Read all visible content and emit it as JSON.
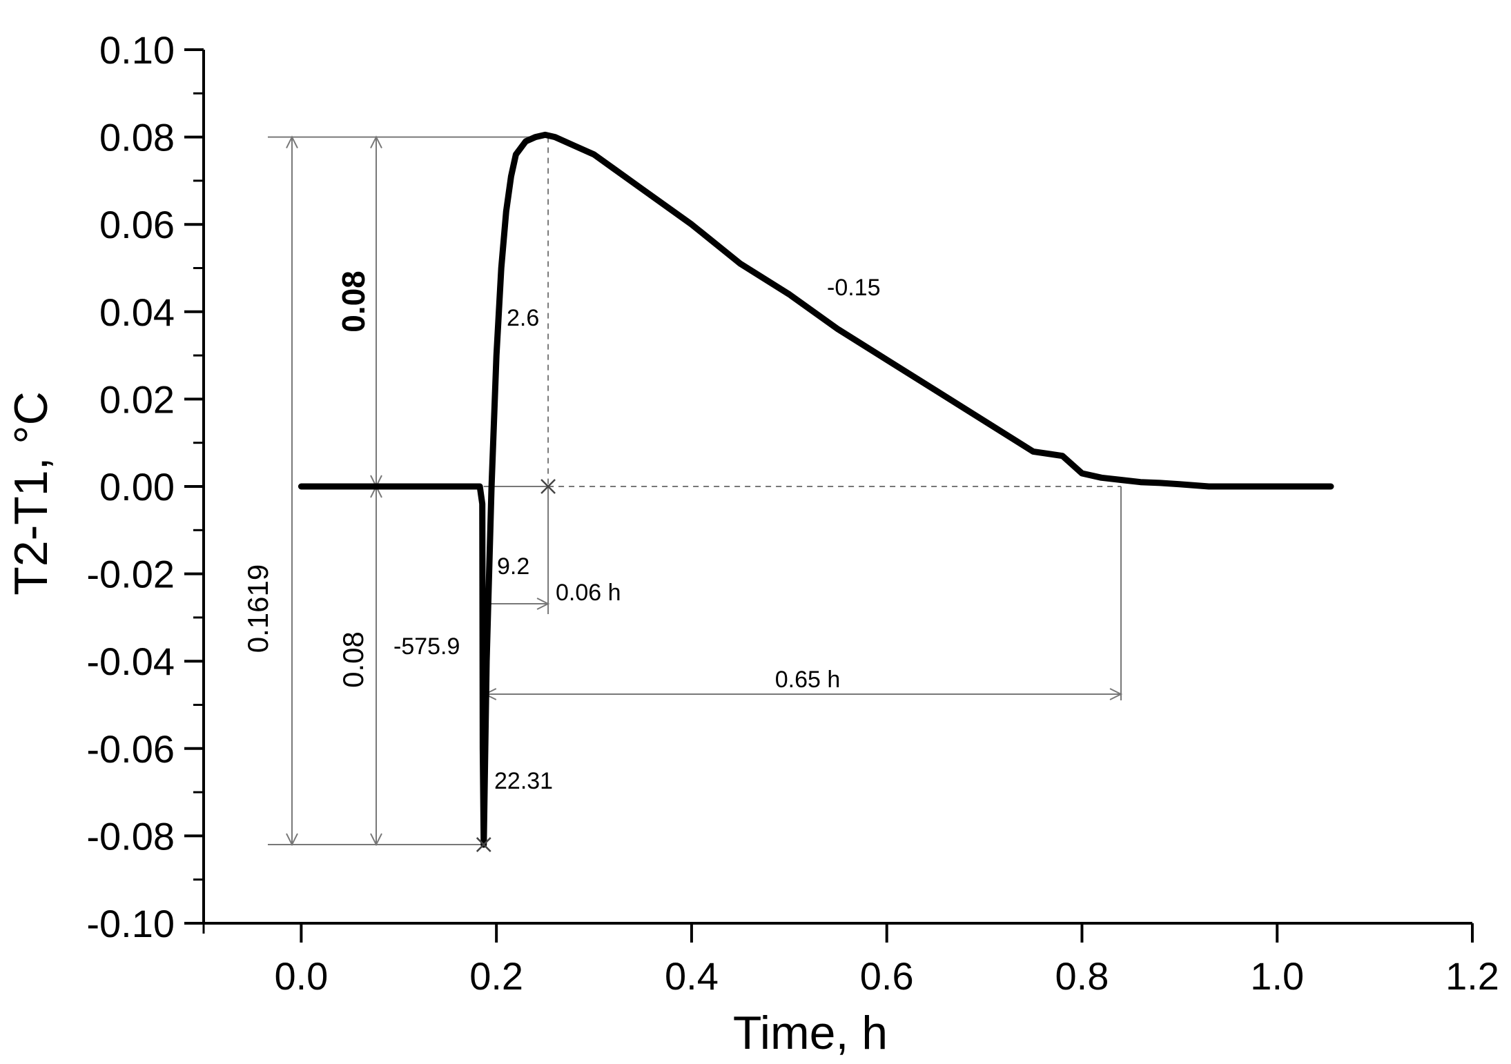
{
  "chart_data": {
    "type": "line",
    "title": "",
    "xlabel": "Time, h",
    "ylabel": "T2-T1, ",
    "ylabel_unit": "°C",
    "xlim": [
      -0.1,
      1.2
    ],
    "ylim": [
      -0.1,
      0.1
    ],
    "x_ticks": [
      0.0,
      0.2,
      0.4,
      0.6,
      0.8,
      1.0,
      1.2
    ],
    "x_tick_labels": [
      "0.0",
      "0.2",
      "0.4",
      "0.6",
      "0.8",
      "1.0",
      "1.2"
    ],
    "y_ticks": [
      0.1,
      0.08,
      0.06,
      0.04,
      0.02,
      0.0,
      -0.02,
      -0.04,
      -0.06,
      -0.08,
      -0.1
    ],
    "y_tick_labels": [
      "0.10",
      "0.08",
      "0.06",
      "0.04",
      "0.02",
      "0.00",
      "-0.02",
      "-0.04",
      "-0.06",
      "-0.08",
      "-0.10"
    ],
    "grid": false,
    "series": [
      {
        "name": "T2-T1",
        "x": [
          0.0,
          0.05,
          0.1,
          0.15,
          0.183,
          0.1855,
          0.186,
          0.187,
          0.19,
          0.195,
          0.2,
          0.205,
          0.21,
          0.215,
          0.22,
          0.23,
          0.24,
          0.25,
          0.26,
          0.28,
          0.3,
          0.35,
          0.4,
          0.45,
          0.5,
          0.55,
          0.6,
          0.65,
          0.7,
          0.75,
          0.78,
          0.8,
          0.82,
          0.84,
          0.86,
          0.88,
          0.9,
          0.93,
          0.96,
          1.0,
          1.055
        ],
        "y": [
          0.0,
          0.0,
          0.0,
          0.0,
          0.0,
          -0.004,
          -0.06,
          -0.082,
          -0.04,
          0.0,
          0.03,
          0.05,
          0.063,
          0.071,
          0.076,
          0.079,
          0.08,
          0.0805,
          0.08,
          0.078,
          0.076,
          0.068,
          0.06,
          0.051,
          0.044,
          0.036,
          0.029,
          0.022,
          0.015,
          0.008,
          0.007,
          0.003,
          0.002,
          0.0015,
          0.001,
          0.0008,
          0.0005,
          0.0,
          0.0,
          0.0,
          0.0
        ]
      }
    ],
    "markers": [
      {
        "label": "x",
        "x": 0.187,
        "y": -0.082
      },
      {
        "label": "x",
        "x": 0.253,
        "y": 0.0
      }
    ],
    "annotations": {
      "amp_total": "0.1619",
      "amp_up": "0.08",
      "amp_down": "0.08",
      "slope_down": "-575.9",
      "rate_min": "22.31",
      "rate_rise": "9.2",
      "slope_rise": "2.6",
      "slope_decay": "-0.15",
      "time_peak": "0.06 h",
      "time_total": "0.65 h"
    }
  }
}
